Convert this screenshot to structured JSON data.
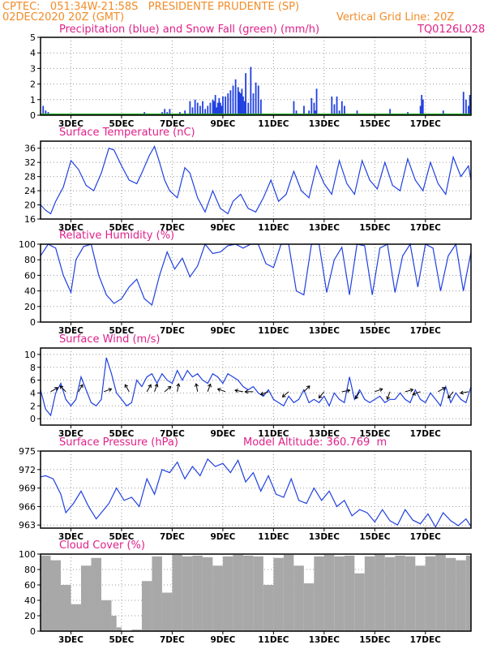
{
  "header": {
    "line1": "CPTEC:   051:34W-21:58S   PRESIDENTE PRUDENTE (SP)",
    "line2_left": "02DEC2020 20Z (GMT)",
    "line2_right": "Vertical Grid Line: 20Z",
    "code": "TQ0126L028"
  },
  "colors": {
    "header": "#f28c28",
    "title": "#e0208a",
    "line": "#2040e0",
    "snow": "#20a020",
    "cloud": "#a8a8a8",
    "arrow": "#000000"
  },
  "chart_data": [
    {
      "id": "precip",
      "type": "bar",
      "title": "Precipitation (blue) and Snow Fall (green) (mm/h)",
      "ylim": [
        0,
        5
      ],
      "yticks": [
        "0",
        "1",
        "2",
        "3",
        "4",
        "5"
      ],
      "xticks": [
        "3DEC",
        "5DEC",
        "7DEC",
        "9DEC",
        "11DEC",
        "13DEC",
        "15DEC",
        "17DEC"
      ],
      "grid": true,
      "series": [
        {
          "name": "Precipitation",
          "color": "#2040e0",
          "t": [
            0.1,
            0.2,
            0.3,
            1.0,
            1.2,
            2.8,
            2.9,
            3.0,
            4.0,
            4.1,
            4.5,
            4.6,
            4.8,
            4.9,
            5.0,
            5.1,
            5.5,
            5.6,
            5.7,
            5.9,
            6.0,
            6.1,
            6.2,
            6.3,
            6.4,
            6.5,
            6.6,
            6.7,
            6.8,
            6.85,
            6.9,
            6.95,
            7.0,
            7.05,
            7.1,
            7.15,
            7.2,
            7.3,
            7.4,
            7.5,
            7.6,
            7.7,
            7.8,
            7.85,
            7.9,
            7.95,
            8.0,
            8.05,
            8.1,
            8.2,
            8.3,
            8.4,
            8.5,
            8.6,
            8.7,
            10.0,
            10.1,
            10.2,
            10.4,
            10.6,
            10.7,
            10.8,
            10.85,
            10.9,
            11.5,
            11.6,
            11.7,
            11.8,
            11.9,
            12.0,
            12.5,
            13.0,
            13.7,
            13.8,
            14.5,
            15.0,
            15.05,
            15.1,
            15.2,
            15.8,
            15.9,
            16.0,
            16.5,
            16.6,
            16.7,
            16.8,
            16.9,
            16.95
          ],
          "values": [
            0.6,
            0.3,
            0.2,
            0.1,
            0.1,
            0.1,
            0.1,
            0.1,
            0.1,
            0.2,
            0.1,
            0.1,
            0.2,
            0.4,
            0.2,
            0.4,
            0.2,
            0.1,
            0.3,
            0.9,
            0.5,
            1.0,
            0.8,
            0.6,
            0.9,
            0.4,
            0.6,
            0.8,
            1.0,
            0.9,
            1.3,
            0.5,
            0.8,
            1.1,
            0.8,
            0.6,
            1.2,
            1.2,
            1.4,
            1.6,
            1.9,
            2.3,
            1.8,
            1.5,
            1.4,
            1.7,
            1.2,
            0.9,
            2.7,
            0.8,
            3.1,
            1.4,
            2.1,
            1.9,
            1.0,
            0.9,
            0.3,
            0.1,
            0.6,
            0.3,
            1.1,
            0.8,
            0.3,
            1.7,
            1.2,
            0.7,
            1.2,
            0.3,
            0.9,
            0.6,
            0.3,
            0.1,
            0.1,
            0.4,
            0.2,
            0.6,
            1.3,
            1.0,
            0.1,
            0.1,
            0.3,
            0.1,
            0.1,
            0.1,
            1.5,
            1.0,
            0.6,
            1.3
          ]
        },
        {
          "name": "Snow Fall",
          "color": "#20a020",
          "values": [
            0
          ]
        }
      ]
    },
    {
      "id": "temp",
      "type": "line",
      "title": "Surface Temperature (nC)",
      "ylim": [
        16,
        38
      ],
      "yticks": [
        "16",
        "20",
        "24",
        "28",
        "32",
        "36"
      ],
      "xticks": [
        "3DEC",
        "5DEC",
        "7DEC",
        "9DEC",
        "11DEC",
        "13DEC",
        "15DEC",
        "17DEC"
      ],
      "x": [
        0.0,
        0.2,
        0.4,
        0.6,
        0.9,
        1.2,
        1.5,
        1.8,
        2.1,
        2.4,
        2.7,
        2.9,
        3.2,
        3.5,
        3.8,
        4.0,
        4.3,
        4.5,
        4.7,
        4.9,
        5.1,
        5.4,
        5.7,
        5.9,
        6.2,
        6.5,
        6.8,
        7.1,
        7.4,
        7.6,
        7.9,
        8.2,
        8.5,
        8.8,
        9.1,
        9.4,
        9.7,
        10.0,
        10.3,
        10.6,
        10.9,
        11.2,
        11.5,
        11.8,
        12.1,
        12.4,
        12.7,
        13.0,
        13.3,
        13.6,
        13.9,
        14.2,
        14.5,
        14.8,
        15.1,
        15.4,
        15.7,
        16.0,
        16.3,
        16.6,
        16.9,
        17.0
      ],
      "y": [
        20,
        18.5,
        17.5,
        21,
        25,
        32.5,
        30,
        25.5,
        24,
        29,
        36,
        35.5,
        31,
        27,
        26,
        29,
        34,
        36.5,
        32,
        27,
        24,
        22,
        30.5,
        29,
        22,
        18,
        24,
        19,
        17.5,
        21,
        23,
        19,
        18,
        22,
        27,
        21,
        23,
        29.5,
        24,
        22,
        31,
        26,
        23,
        32.5,
        26,
        23,
        32.5,
        27,
        24.5,
        32,
        25.5,
        24,
        33,
        27,
        24,
        32,
        26,
        23,
        33.5,
        28,
        31,
        27
      ]
    },
    {
      "id": "rh",
      "type": "line",
      "title": "Relative Humidity (%)",
      "ylim": [
        0,
        100
      ],
      "yticks": [
        "0",
        "20",
        "40",
        "60",
        "80",
        "100"
      ],
      "xticks": [
        "3DEC",
        "5DEC",
        "7DEC",
        "9DEC",
        "11DEC",
        "13DEC",
        "15DEC",
        "17DEC"
      ],
      "x": [
        0.0,
        0.3,
        0.6,
        0.9,
        1.2,
        1.4,
        1.7,
        2.0,
        2.3,
        2.6,
        2.9,
        3.2,
        3.5,
        3.8,
        4.1,
        4.4,
        4.7,
        5.0,
        5.3,
        5.6,
        5.9,
        6.2,
        6.5,
        6.8,
        7.1,
        7.4,
        7.7,
        8.0,
        8.3,
        8.6,
        8.9,
        9.2,
        9.5,
        9.8,
        10.1,
        10.4,
        10.7,
        11.0,
        11.3,
        11.6,
        11.9,
        12.2,
        12.5,
        12.8,
        13.1,
        13.4,
        13.7,
        14.0,
        14.3,
        14.6,
        14.9,
        15.2,
        15.5,
        15.8,
        16.1,
        16.4,
        16.7,
        17.0
      ],
      "y": [
        85,
        100,
        95,
        60,
        38,
        80,
        97,
        100,
        60,
        35,
        24,
        30,
        45,
        55,
        30,
        22,
        60,
        90,
        68,
        82,
        58,
        72,
        100,
        88,
        90,
        98,
        100,
        95,
        100,
        100,
        75,
        70,
        100,
        100,
        40,
        35,
        100,
        100,
        38,
        80,
        96,
        35,
        100,
        98,
        35,
        95,
        100,
        38,
        85,
        100,
        45,
        100,
        95,
        40,
        85,
        100,
        40,
        90
      ]
    },
    {
      "id": "wind",
      "type": "line",
      "title": "Surface Wind (m/s)",
      "ylim": [
        -1,
        11
      ],
      "yticks": [
        "0",
        "2",
        "4",
        "6",
        "8",
        "10"
      ],
      "xticks": [
        "3DEC",
        "5DEC",
        "7DEC",
        "9DEC",
        "11DEC",
        "13DEC",
        "15DEC",
        "17DEC"
      ],
      "x": [
        0.0,
        0.2,
        0.4,
        0.6,
        0.8,
        1.0,
        1.2,
        1.4,
        1.6,
        1.8,
        2.0,
        2.2,
        2.4,
        2.6,
        2.8,
        3.0,
        3.2,
        3.4,
        3.6,
        3.8,
        4.0,
        4.2,
        4.4,
        4.6,
        4.8,
        5.0,
        5.2,
        5.4,
        5.6,
        5.8,
        6.0,
        6.2,
        6.4,
        6.6,
        6.8,
        7.0,
        7.2,
        7.4,
        7.6,
        7.8,
        8.0,
        8.2,
        8.4,
        8.6,
        8.8,
        9.0,
        9.2,
        9.4,
        9.6,
        9.8,
        10.0,
        10.2,
        10.4,
        10.6,
        10.8,
        11.0,
        11.2,
        11.4,
        11.6,
        11.8,
        12.0,
        12.2,
        12.4,
        12.6,
        12.8,
        13.0,
        13.2,
        13.4,
        13.6,
        13.8,
        14.0,
        14.2,
        14.4,
        14.6,
        14.8,
        15.0,
        15.2,
        15.4,
        15.6,
        15.8,
        16.0,
        16.2,
        16.4,
        16.6,
        16.8,
        17.0
      ],
      "y": [
        4.5,
        1.5,
        0.5,
        4,
        5.5,
        3,
        2,
        3,
        6.5,
        4.5,
        2.5,
        2,
        3,
        9.5,
        7,
        4,
        3,
        2,
        2.5,
        6,
        5,
        6.5,
        7,
        5.5,
        7,
        6,
        5.5,
        7.5,
        6,
        7.5,
        6.5,
        7,
        6,
        5.5,
        7,
        6.5,
        5.5,
        7,
        6.5,
        6,
        5,
        4.5,
        5,
        4,
        3.5,
        4.5,
        3,
        2.5,
        2,
        3.5,
        2.5,
        3,
        4.5,
        2.5,
        3,
        2.5,
        3.5,
        2,
        4,
        3,
        2.5,
        6.5,
        3,
        4.5,
        3,
        2.5,
        3,
        3.5,
        2.5,
        3,
        3,
        4,
        3,
        2.5,
        4.5,
        3,
        2.5,
        4,
        3,
        2,
        5,
        2.5,
        4,
        3,
        2.5,
        5
      ],
      "arrows": [
        {
          "t": 0.4,
          "dir": 30
        },
        {
          "t": 1.0,
          "dir": 135
        },
        {
          "t": 1.5,
          "dir": 60
        },
        {
          "t": 2.5,
          "dir": 20
        },
        {
          "t": 3.5,
          "dir": 120
        },
        {
          "t": 4.2,
          "dir": 60
        },
        {
          "t": 4.5,
          "dir": 70
        },
        {
          "t": 4.9,
          "dir": 40
        },
        {
          "t": 5.4,
          "dir": 80
        },
        {
          "t": 6.2,
          "dir": 100
        },
        {
          "t": 6.6,
          "dir": 70
        },
        {
          "t": 7.3,
          "dir": 160
        },
        {
          "t": 8.0,
          "dir": 170
        },
        {
          "t": 8.4,
          "dir": 180
        },
        {
          "t": 9.0,
          "dir": 200
        },
        {
          "t": 9.8,
          "dir": 220
        },
        {
          "t": 10.4,
          "dir": 45
        },
        {
          "t": 11.2,
          "dir": 230
        },
        {
          "t": 11.9,
          "dir": 10
        },
        {
          "t": 12.6,
          "dir": 240
        },
        {
          "t": 13.2,
          "dir": 20
        },
        {
          "t": 13.8,
          "dir": 250
        },
        {
          "t": 14.4,
          "dir": 15
        },
        {
          "t": 15.0,
          "dir": 200
        },
        {
          "t": 15.7,
          "dir": 30
        },
        {
          "t": 16.3,
          "dir": 230
        },
        {
          "t": 16.9,
          "dir": 190
        }
      ]
    },
    {
      "id": "pressure",
      "type": "line",
      "title": "Surface Pressure (hPa)",
      "annotation": "Model Altitude: 360.769  m",
      "ylim": [
        962.5,
        975
      ],
      "yticks": [
        "963",
        "966",
        "969",
        "972",
        "975"
      ],
      "xticks": [
        "3DEC",
        "5DEC",
        "7DEC",
        "9DEC",
        "11DEC",
        "13DEC",
        "15DEC",
        "17DEC"
      ],
      "x": [
        0.0,
        0.2,
        0.5,
        0.8,
        1.0,
        1.3,
        1.6,
        1.9,
        2.2,
        2.5,
        2.7,
        3.0,
        3.3,
        3.6,
        3.9,
        4.2,
        4.5,
        4.8,
        5.1,
        5.4,
        5.7,
        6.0,
        6.3,
        6.6,
        6.9,
        7.2,
        7.5,
        7.8,
        8.1,
        8.4,
        8.7,
        9.0,
        9.3,
        9.6,
        9.9,
        10.2,
        10.5,
        10.8,
        11.1,
        11.4,
        11.7,
        12.0,
        12.3,
        12.6,
        12.9,
        13.2,
        13.5,
        13.8,
        14.1,
        14.4,
        14.7,
        15.0,
        15.3,
        15.6,
        15.9,
        16.2,
        16.5,
        16.8,
        17.0
      ],
      "y": [
        970.8,
        971,
        970.5,
        968,
        965,
        966.5,
        968.5,
        966,
        964,
        965.5,
        966.5,
        969,
        967,
        967.5,
        966,
        970.5,
        968,
        972,
        971.5,
        973.2,
        970.5,
        972.5,
        971,
        973.7,
        972.5,
        973,
        971.5,
        973.5,
        970,
        971.5,
        968.5,
        971,
        968,
        967.5,
        970.5,
        967,
        966.5,
        969,
        967,
        968.5,
        966,
        967,
        964.5,
        965.5,
        965,
        963.5,
        965.5,
        963.7,
        963,
        965.5,
        963.8,
        963.2,
        964.8,
        962.7,
        965,
        963.7,
        962.9,
        964,
        962.8
      ]
    },
    {
      "id": "cloud",
      "type": "bar",
      "title": "Cloud Cover (%)",
      "ylim": [
        0,
        100
      ],
      "yticks": [
        "0",
        "20",
        "40",
        "60",
        "80",
        "100"
      ],
      "xticks": [
        "3DEC",
        "5DEC",
        "7DEC",
        "9DEC",
        "11DEC",
        "13DEC",
        "15DEC",
        "17DEC"
      ],
      "seg_t": [
        0.0,
        0.4,
        0.8,
        1.2,
        1.6,
        2.0,
        2.4,
        2.8,
        3.0,
        3.2,
        3.6,
        4.0,
        4.4,
        4.8,
        5.2,
        5.6,
        6.0,
        6.4,
        6.8,
        7.2,
        7.6,
        8.0,
        8.4,
        8.8,
        9.2,
        9.6,
        10.0,
        10.4,
        10.8,
        11.2,
        11.6,
        12.0,
        12.4,
        12.8,
        13.2,
        13.6,
        14.0,
        14.4,
        14.8,
        15.2,
        15.6,
        16.0,
        16.4,
        16.8,
        17.0
      ],
      "values": [
        98,
        92,
        60,
        35,
        85,
        95,
        40,
        20,
        5,
        0,
        2,
        65,
        97,
        50,
        99,
        97,
        98,
        96,
        85,
        97,
        99,
        98,
        97,
        60,
        95,
        99,
        85,
        62,
        97,
        99,
        97,
        98,
        75,
        97,
        99,
        96,
        98,
        97,
        85,
        97,
        99,
        95,
        92,
        98,
        97
      ]
    }
  ]
}
